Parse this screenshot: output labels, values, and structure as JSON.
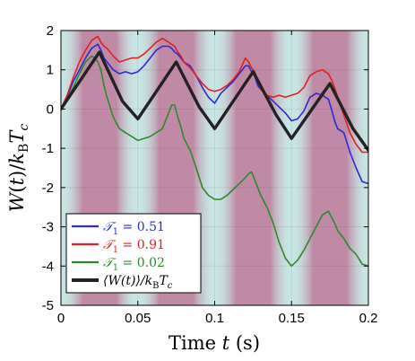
{
  "chart_data": {
    "type": "line",
    "xlabel": "Time t (s)",
    "ylabel": "W(t)/k_B T_c",
    "xlim": [
      0,
      0.2
    ],
    "ylim": [
      -5,
      2
    ],
    "xticks": [
      0,
      0.05,
      0.1,
      0.15,
      0.2
    ],
    "xtick_labels": [
      "0",
      "0.05",
      "0.1",
      "0.15",
      "0.2"
    ],
    "yticks": [
      2,
      1,
      0,
      -1,
      -2,
      -3,
      -4,
      -5
    ],
    "ytick_labels": [
      "2",
      "1",
      "0",
      "-1",
      "-2",
      "-3",
      "-4",
      "-5"
    ],
    "background_bands": {
      "period": 0.05,
      "hot_color": "#c08aa6",
      "cold_color": "#c7e6e4",
      "hot_centers": [
        0.025,
        0.075,
        0.125,
        0.175
      ],
      "cold_centers": [
        0,
        0.05,
        0.1,
        0.15,
        0.2
      ]
    },
    "legend_position": "bottom-left",
    "series": [
      {
        "name": "T1 = 0.51",
        "label_main": "𝒯",
        "label_sub": "1",
        "label_rest": " = 0.51",
        "color": "#2a2ad6",
        "width": 1.6,
        "x": [
          0,
          0.004,
          0.008,
          0.012,
          0.016,
          0.02,
          0.022,
          0.024,
          0.026,
          0.028,
          0.03,
          0.034,
          0.038,
          0.042,
          0.046,
          0.05,
          0.054,
          0.058,
          0.062,
          0.066,
          0.07,
          0.072,
          0.074,
          0.076,
          0.078,
          0.08,
          0.084,
          0.088,
          0.092,
          0.096,
          0.1,
          0.104,
          0.108,
          0.112,
          0.116,
          0.12,
          0.122,
          0.124,
          0.126,
          0.128,
          0.13,
          0.134,
          0.138,
          0.142,
          0.146,
          0.15,
          0.154,
          0.158,
          0.162,
          0.166,
          0.17,
          0.172,
          0.174,
          0.176,
          0.178,
          0.18,
          0.184,
          0.188,
          0.192,
          0.196,
          0.2
        ],
        "y": [
          0,
          0.3,
          0.7,
          1.0,
          1.3,
          1.55,
          1.6,
          1.65,
          1.5,
          1.3,
          1.2,
          1.0,
          0.9,
          0.95,
          0.9,
          0.95,
          1.1,
          1.3,
          1.5,
          1.6,
          1.6,
          1.55,
          1.45,
          1.4,
          1.3,
          1.2,
          1.1,
          0.85,
          0.55,
          0.3,
          0.15,
          0.4,
          0.55,
          0.7,
          0.9,
          1.1,
          1.1,
          0.95,
          0.85,
          0.6,
          0.5,
          0.35,
          0.2,
          0.05,
          -0.1,
          -0.3,
          -0.25,
          -0.05,
          0.3,
          0.4,
          0.35,
          0.3,
          0.25,
          0.0,
          -0.3,
          -0.5,
          -0.6,
          -1.1,
          -1.5,
          -1.85,
          -1.9
        ]
      },
      {
        "name": "T1 = 0.91",
        "label_main": "𝒯",
        "label_sub": "1",
        "label_rest": " = 0.91",
        "color": "#e02020",
        "width": 1.6,
        "x": [
          0,
          0.004,
          0.008,
          0.012,
          0.016,
          0.02,
          0.022,
          0.024,
          0.026,
          0.028,
          0.03,
          0.034,
          0.038,
          0.042,
          0.046,
          0.05,
          0.054,
          0.058,
          0.062,
          0.066,
          0.07,
          0.072,
          0.074,
          0.076,
          0.078,
          0.08,
          0.084,
          0.088,
          0.092,
          0.096,
          0.1,
          0.104,
          0.108,
          0.112,
          0.116,
          0.12,
          0.122,
          0.124,
          0.126,
          0.128,
          0.13,
          0.134,
          0.138,
          0.142,
          0.146,
          0.15,
          0.154,
          0.158,
          0.162,
          0.166,
          0.17,
          0.172,
          0.174,
          0.176,
          0.178,
          0.18,
          0.184,
          0.188,
          0.192,
          0.196,
          0.2
        ],
        "y": [
          0,
          0.35,
          0.8,
          1.2,
          1.5,
          1.75,
          1.8,
          1.85,
          1.7,
          1.6,
          1.55,
          1.35,
          1.2,
          1.25,
          1.3,
          1.3,
          1.4,
          1.55,
          1.7,
          1.8,
          1.7,
          1.65,
          1.6,
          1.45,
          1.35,
          1.2,
          1.05,
          0.85,
          0.65,
          0.5,
          0.45,
          0.5,
          0.6,
          0.75,
          0.95,
          1.3,
          1.2,
          1.05,
          0.95,
          0.7,
          0.5,
          0.35,
          0.3,
          0.35,
          0.3,
          0.35,
          0.4,
          0.55,
          0.85,
          0.95,
          1.0,
          0.95,
          0.9,
          0.75,
          0.55,
          0.3,
          -0.15,
          -0.6,
          -0.9,
          -1.1,
          -1.1
        ]
      },
      {
        "name": "T1 = 0.02",
        "label_main": "𝒯",
        "label_sub": "1",
        "label_rest": " = 0.02",
        "color": "#2a8a2a",
        "width": 1.6,
        "x": [
          0,
          0.004,
          0.008,
          0.012,
          0.016,
          0.02,
          0.022,
          0.024,
          0.026,
          0.028,
          0.03,
          0.034,
          0.038,
          0.042,
          0.046,
          0.05,
          0.054,
          0.058,
          0.062,
          0.066,
          0.07,
          0.072,
          0.074,
          0.076,
          0.078,
          0.08,
          0.084,
          0.088,
          0.092,
          0.096,
          0.1,
          0.104,
          0.108,
          0.112,
          0.116,
          0.12,
          0.122,
          0.124,
          0.126,
          0.128,
          0.13,
          0.134,
          0.138,
          0.142,
          0.146,
          0.15,
          0.154,
          0.158,
          0.162,
          0.166,
          0.17,
          0.172,
          0.174,
          0.176,
          0.178,
          0.18,
          0.184,
          0.188,
          0.192,
          0.196,
          0.2
        ],
        "y": [
          0,
          0.25,
          0.55,
          0.9,
          1.2,
          1.35,
          1.3,
          1.2,
          1.0,
          0.6,
          0.3,
          -0.2,
          -0.5,
          -0.6,
          -0.7,
          -0.8,
          -0.75,
          -0.7,
          -0.6,
          -0.5,
          -0.1,
          0.1,
          0.1,
          -0.2,
          -0.45,
          -0.75,
          -1.05,
          -1.5,
          -2.0,
          -2.2,
          -2.3,
          -2.3,
          -2.2,
          -2.05,
          -1.9,
          -1.75,
          -1.65,
          -1.6,
          -1.8,
          -2.0,
          -2.2,
          -2.5,
          -2.9,
          -3.4,
          -3.8,
          -4.0,
          -3.85,
          -3.6,
          -3.3,
          -3.0,
          -2.7,
          -2.65,
          -2.6,
          -2.75,
          -2.9,
          -3.1,
          -3.3,
          -3.55,
          -3.7,
          -3.95,
          -4.0
        ]
      },
      {
        "name": "⟨W(t)⟩/kBTc",
        "label_main": "⟨W(t)⟩/k",
        "label_sub": "B",
        "label_rest": "T",
        "label_sub2": "c",
        "color": "#222222",
        "width": 3.4,
        "x": [
          0,
          0.025,
          0.04,
          0.05,
          0.075,
          0.09,
          0.1,
          0.125,
          0.14,
          0.15,
          0.175,
          0.19,
          0.2
        ],
        "y": [
          0,
          1.45,
          0.2,
          -0.25,
          1.2,
          0.05,
          -0.5,
          0.95,
          -0.15,
          -0.75,
          0.65,
          -0.5,
          -1.05
        ]
      }
    ]
  }
}
